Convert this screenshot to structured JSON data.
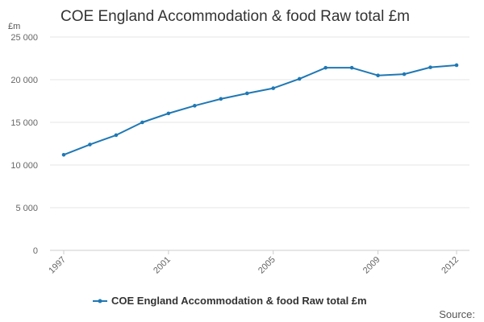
{
  "title": "COE England Accommodation & food Raw total £m",
  "source_label": "Source:",
  "colors": {
    "series": "#1f78b4",
    "grid": "#e6e6e6",
    "axis": "#cccccc"
  },
  "chart_data": {
    "type": "line",
    "title": "COE England Accommodation & food Raw total £m",
    "y_unit": "£m",
    "xlim": [
      1997,
      2012
    ],
    "ylim": [
      0,
      25000
    ],
    "y_ticks": [
      0,
      5000,
      10000,
      15000,
      20000,
      25000
    ],
    "y_tick_labels": [
      "0",
      "5 000",
      "10 000",
      "15 000",
      "20 000",
      "25 000"
    ],
    "x_tick_labels": [
      "1997",
      "2001",
      "2005",
      "2009",
      "2012"
    ],
    "grid": true,
    "legend_position": "bottom",
    "series": [
      {
        "name": "COE England Accommodation & food Raw total £m",
        "x": [
          1997,
          1998,
          1999,
          2000,
          2001,
          2002,
          2003,
          2004,
          2005,
          2006,
          2007,
          2008,
          2009,
          2010,
          2011,
          2012
        ],
        "values": [
          11200,
          12400,
          13500,
          15000,
          16050,
          16950,
          17750,
          18400,
          19000,
          20100,
          21400,
          21400,
          20500,
          20650,
          21450,
          21700
        ]
      }
    ]
  }
}
